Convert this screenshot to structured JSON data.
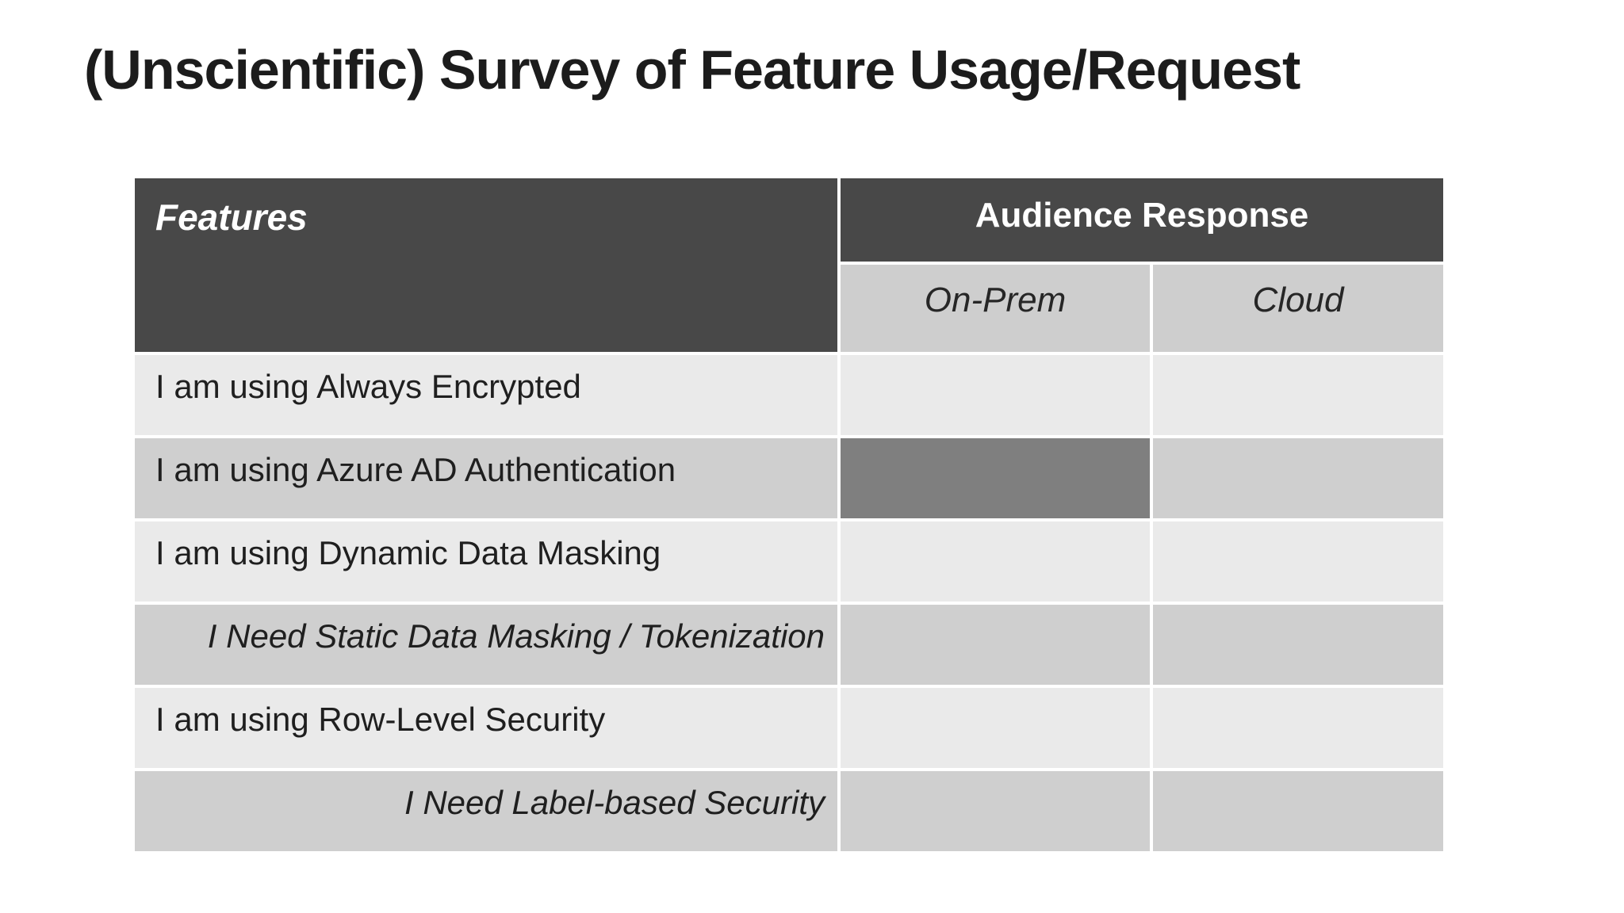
{
  "title": "(Unscientific) Survey of Feature Usage/Request",
  "table": {
    "features_header": "Features",
    "response_header": "Audience Response",
    "column_headers": [
      "On-Prem",
      "Cloud"
    ],
    "rows": [
      {
        "label": "I am using Always Encrypted",
        "style": "using",
        "onprem_filled": false,
        "cloud_filled": false
      },
      {
        "label": "I am using Azure AD Authentication",
        "style": "using",
        "onprem_filled": true,
        "cloud_filled": false
      },
      {
        "label": "I am using Dynamic Data Masking",
        "style": "using",
        "onprem_filled": false,
        "cloud_filled": false
      },
      {
        "label": "I Need Static Data Masking / Tokenization",
        "style": "need",
        "onprem_filled": false,
        "cloud_filled": false
      },
      {
        "label": "I am using Row-Level Security",
        "style": "using",
        "onprem_filled": false,
        "cloud_filled": false
      },
      {
        "label": "I Need Label-based Security",
        "style": "need",
        "onprem_filled": false,
        "cloud_filled": false
      }
    ],
    "colors": {
      "header_bg": "#484848",
      "subheader_bg": "#cecece",
      "row_light": "#eaeaea",
      "row_mid": "#cfcfcf",
      "filled_bg": "#7f7f7f",
      "border": "#ffffff",
      "title_text": "#1c1c1c"
    }
  }
}
